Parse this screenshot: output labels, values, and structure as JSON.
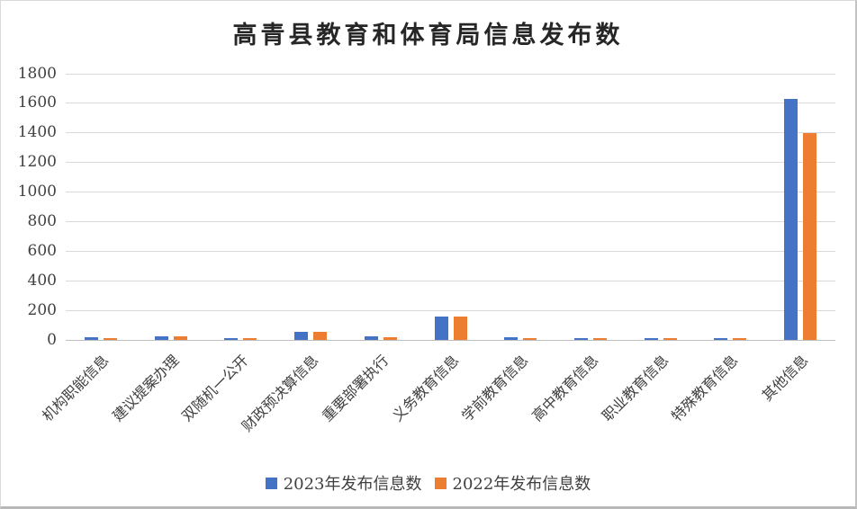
{
  "chart_data": {
    "type": "bar",
    "title": "高青县教育和体育局信息发布数",
    "categories": [
      "机构职能信息",
      "建议提案办理",
      "双随机一公开",
      "财政预决算信息",
      "重要部署执行",
      "义务教育信息",
      "学前教育信息",
      "高中教育信息",
      "职业教育信息",
      "特殊教育信息",
      "其他信息"
    ],
    "series": [
      {
        "name": "2023年发布信息数",
        "color": "#4472C4",
        "values": [
          20,
          25,
          15,
          57,
          22,
          160,
          20,
          12,
          13,
          13,
          1630
        ]
      },
      {
        "name": "2022年发布信息数",
        "color": "#ED7D31",
        "values": [
          14,
          24,
          12,
          53,
          18,
          158,
          13,
          12,
          12,
          10,
          1400
        ]
      }
    ],
    "ylabel": "",
    "xlabel": "",
    "ylim": [
      0,
      1800
    ],
    "ytick_step": 200,
    "yticks": [
      0,
      200,
      400,
      600,
      800,
      1000,
      1200,
      1400,
      1600,
      1800
    ],
    "grid": true,
    "legend_position": "bottom"
  },
  "style": {
    "background": "#ffffff",
    "gridline_color": "#d9d9d9",
    "axis_line_color": "#bfbfbf",
    "label_color": "#404040",
    "title_color": "#262626"
  }
}
